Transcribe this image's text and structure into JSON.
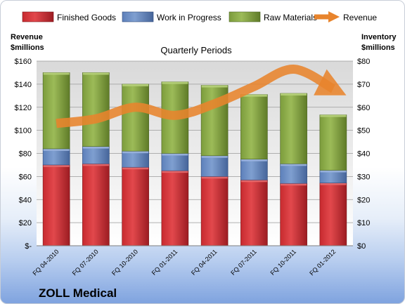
{
  "chart_data": {
    "type": "bar",
    "stacked": true,
    "subtitle": "Quarterly Periods",
    "ylabel_left": "Revenue\n$millions",
    "ylabel_right": "Inventory\n$millions",
    "ylim_left": [
      0,
      160
    ],
    "ylim_right": [
      0,
      80
    ],
    "yticks_left": [
      "$-",
      "$20",
      "$40",
      "$60",
      "$80",
      "$100",
      "$120",
      "$140",
      "$160"
    ],
    "yticks_right": [
      "$0",
      "$10",
      "$20",
      "$30",
      "$40",
      "$50",
      "$60",
      "$70",
      "$80"
    ],
    "categories": [
      "FQ 04-2010",
      "FQ 07-2010",
      "FQ 10-2010",
      "FQ 01-2011",
      "FQ 04-2011",
      "FQ 07-2011",
      "FQ 10-2011",
      "FQ 01-2012"
    ],
    "series": [
      {
        "name": "Finished Goods",
        "axis": "right",
        "color": "#c0272d",
        "values": [
          35,
          35.5,
          34,
          32.5,
          30,
          28.5,
          27,
          27.2
        ]
      },
      {
        "name": "Work in Progress",
        "axis": "right",
        "color": "#5a7fba",
        "values": [
          7,
          7.5,
          7,
          7.5,
          9,
          9,
          8.5,
          5.5
        ]
      },
      {
        "name": "Raw Materials",
        "axis": "right",
        "color": "#7ea33a",
        "values": [
          33,
          32,
          29,
          31,
          30.5,
          28,
          30.5,
          24
        ]
      },
      {
        "name": "Revenue",
        "axis": "left",
        "type": "line",
        "color": "#e8842c",
        "values": [
          106,
          110,
          120,
          113,
          123,
          138,
          153,
          136
        ]
      }
    ],
    "legend_position": "top",
    "grid": true
  },
  "brand": "ZOLL Medical"
}
